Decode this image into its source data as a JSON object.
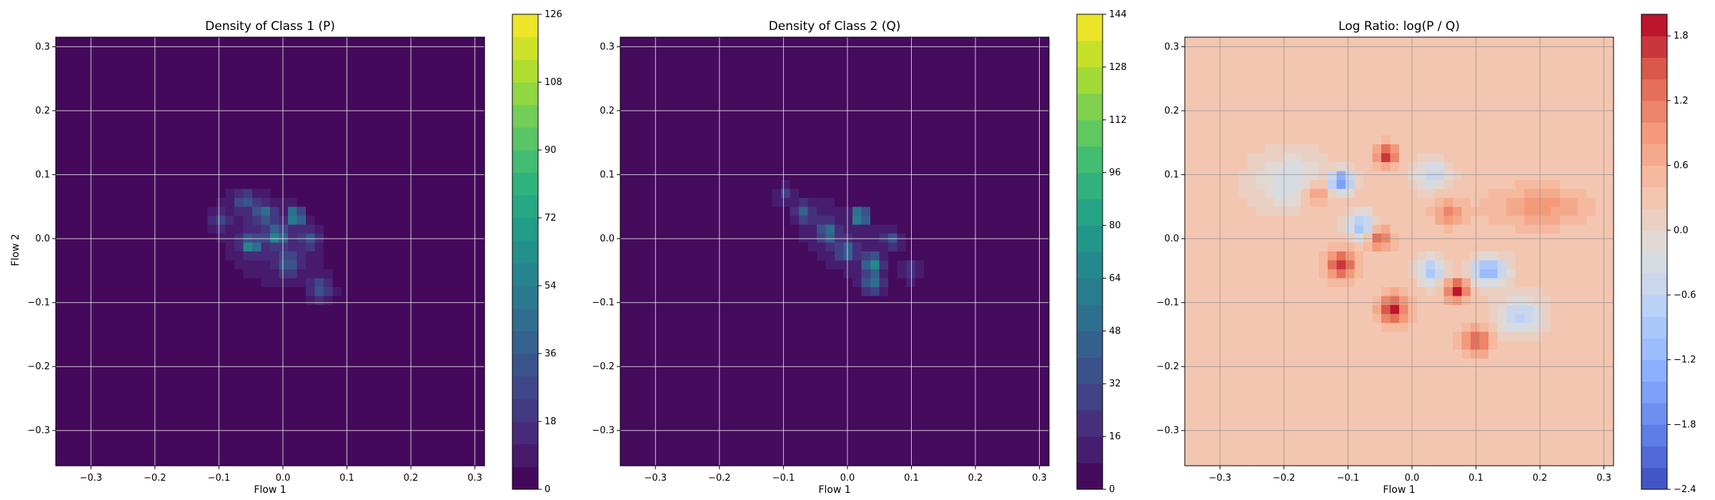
{
  "figure": {
    "background": "#ffffff"
  },
  "chart_data": [
    {
      "type": "heatmap",
      "title": "Density of Class 1 (P)",
      "xlabel": "Flow 1",
      "ylabel": "Flow 2",
      "xlim": [
        -0.355,
        0.315
      ],
      "ylim": [
        -0.355,
        0.315
      ],
      "xticks": [
        -0.3,
        -0.2,
        -0.1,
        0.0,
        0.1,
        0.2,
        0.3
      ],
      "yticks": [
        -0.3,
        -0.2,
        -0.1,
        0.0,
        0.1,
        0.2,
        0.3
      ],
      "xtick_labels": [
        "−0.3",
        "−0.2",
        "−0.1",
        "0.0",
        "0.1",
        "0.2",
        "0.3"
      ],
      "ytick_labels": [
        "−0.3",
        "−0.2",
        "−0.1",
        "0.0",
        "0.1",
        "0.2",
        "0.3"
      ],
      "grid": true,
      "colormap": "viridis",
      "colorbar": {
        "min": 0,
        "max": 126,
        "levels": 21,
        "ticks": [
          0,
          18,
          36,
          54,
          72,
          90,
          108,
          126
        ]
      },
      "blobs": [
        {
          "x": -0.02,
          "y": 0.0,
          "sx": 0.07,
          "sy": 0.05,
          "angle": -35,
          "amp": 14
        },
        {
          "x": 0.02,
          "y": 0.035,
          "sx": 0.008,
          "sy": 0.008,
          "angle": 0,
          "amp": 70
        },
        {
          "x": -0.05,
          "y": -0.01,
          "sx": 0.009,
          "sy": 0.009,
          "angle": 0,
          "amp": 55
        },
        {
          "x": -0.01,
          "y": 0.005,
          "sx": 0.01,
          "sy": 0.01,
          "angle": 0,
          "amp": 48
        },
        {
          "x": -0.03,
          "y": 0.04,
          "sx": 0.01,
          "sy": 0.01,
          "angle": 0,
          "amp": 38
        },
        {
          "x": 0.06,
          "y": -0.08,
          "sx": 0.012,
          "sy": 0.012,
          "angle": 0,
          "amp": 32
        },
        {
          "x": -0.06,
          "y": 0.06,
          "sx": 0.01,
          "sy": 0.01,
          "angle": 0,
          "amp": 30
        },
        {
          "x": 0.01,
          "y": -0.04,
          "sx": 0.012,
          "sy": 0.012,
          "angle": 0,
          "amp": 28
        },
        {
          "x": 0.04,
          "y": 0.0,
          "sx": 0.01,
          "sy": 0.01,
          "angle": 0,
          "amp": 25
        },
        {
          "x": -0.1,
          "y": 0.03,
          "sx": 0.012,
          "sy": 0.012,
          "angle": 0,
          "amp": 18
        }
      ]
    },
    {
      "type": "heatmap",
      "title": "Density of Class 2 (Q)",
      "xlabel": "Flow 1",
      "ylabel": "",
      "xlim": [
        -0.355,
        0.315
      ],
      "ylim": [
        -0.355,
        0.315
      ],
      "xticks": [
        -0.3,
        -0.2,
        -0.1,
        0.0,
        0.1,
        0.2,
        0.3
      ],
      "yticks": [
        -0.3,
        -0.2,
        -0.1,
        0.0,
        0.1,
        0.2,
        0.3
      ],
      "xtick_labels": [
        "−0.3",
        "−0.2",
        "−0.1",
        "0.0",
        "0.1",
        "0.2",
        "0.3"
      ],
      "ytick_labels": [
        "−0.3",
        "−0.2",
        "−0.1",
        "0.0",
        "0.1",
        "0.2",
        "0.3"
      ],
      "grid": true,
      "colormap": "viridis",
      "colorbar": {
        "min": 0,
        "max": 144,
        "levels": 18,
        "ticks": [
          0,
          16,
          32,
          48,
          64,
          80,
          96,
          112,
          128,
          144
        ]
      },
      "blobs": [
        {
          "x": -0.01,
          "y": 0.0,
          "sx": 0.075,
          "sy": 0.045,
          "angle": -40,
          "amp": 14
        },
        {
          "x": 0.02,
          "y": 0.035,
          "sx": 0.008,
          "sy": 0.008,
          "angle": 0,
          "amp": 80
        },
        {
          "x": 0.04,
          "y": -0.04,
          "sx": 0.01,
          "sy": 0.01,
          "angle": 0,
          "amp": 60
        },
        {
          "x": 0.04,
          "y": -0.07,
          "sx": 0.01,
          "sy": 0.01,
          "angle": 0,
          "amp": 50
        },
        {
          "x": -0.03,
          "y": 0.01,
          "sx": 0.01,
          "sy": 0.01,
          "angle": 0,
          "amp": 45
        },
        {
          "x": 0.0,
          "y": -0.02,
          "sx": 0.01,
          "sy": 0.01,
          "angle": 0,
          "amp": 40
        },
        {
          "x": -0.07,
          "y": 0.04,
          "sx": 0.01,
          "sy": 0.01,
          "angle": 0,
          "amp": 35
        },
        {
          "x": 0.07,
          "y": 0.0,
          "sx": 0.01,
          "sy": 0.01,
          "angle": 0,
          "amp": 30
        },
        {
          "x": -0.1,
          "y": 0.07,
          "sx": 0.01,
          "sy": 0.01,
          "angle": 0,
          "amp": 22
        },
        {
          "x": 0.1,
          "y": -0.05,
          "sx": 0.012,
          "sy": 0.012,
          "angle": 0,
          "amp": 18
        }
      ]
    },
    {
      "type": "heatmap",
      "title": "Log Ratio: log(P / Q)",
      "xlabel": "Flow 1",
      "ylabel": "",
      "xlim": [
        -0.355,
        0.315
      ],
      "ylim": [
        -0.355,
        0.315
      ],
      "xticks": [
        -0.3,
        -0.2,
        -0.1,
        0.0,
        0.1,
        0.2,
        0.3
      ],
      "yticks": [
        -0.3,
        -0.2,
        -0.1,
        0.0,
        0.1,
        0.2,
        0.3
      ],
      "xtick_labels": [
        "−0.3",
        "−0.2",
        "−0.1",
        "0.0",
        "0.1",
        "0.2",
        "0.3"
      ],
      "ytick_labels": [
        "−0.3",
        "−0.2",
        "−0.1",
        "0.0",
        "0.1",
        "0.2",
        "0.3"
      ],
      "grid": true,
      "colormap": "coolwarm",
      "colorbar": {
        "min": -2.4,
        "max": 2.0,
        "levels": 22,
        "ticks": [
          -2.4,
          -1.8,
          -1.2,
          -0.6,
          0.0,
          0.6,
          1.2,
          1.8
        ],
        "tick_labels": [
          "−2.4",
          "−1.8",
          "−1.2",
          "−0.6",
          "0.0",
          "0.6",
          "1.2",
          "1.8"
        ]
      },
      "background_value": 0.3,
      "blobs": [
        {
          "x": -0.11,
          "y": 0.09,
          "sx": 0.012,
          "sy": 0.012,
          "angle": 0,
          "amp": -2.0
        },
        {
          "x": -0.08,
          "y": 0.02,
          "sx": 0.015,
          "sy": 0.015,
          "angle": 0,
          "amp": -1.3
        },
        {
          "x": 0.12,
          "y": -0.05,
          "sx": 0.02,
          "sy": 0.015,
          "angle": 0,
          "amp": -1.5
        },
        {
          "x": 0.17,
          "y": -0.12,
          "sx": 0.025,
          "sy": 0.02,
          "angle": 0,
          "amp": -1.0
        },
        {
          "x": 0.03,
          "y": 0.1,
          "sx": 0.02,
          "sy": 0.015,
          "angle": 0,
          "amp": -0.9
        },
        {
          "x": 0.03,
          "y": -0.05,
          "sx": 0.015,
          "sy": 0.015,
          "angle": 0,
          "amp": -1.2
        },
        {
          "x": -0.19,
          "y": 0.09,
          "sx": 0.04,
          "sy": 0.03,
          "angle": 0,
          "amp": -0.7
        },
        {
          "x": -0.04,
          "y": 0.13,
          "sx": 0.012,
          "sy": 0.012,
          "angle": 0,
          "amp": 1.4
        },
        {
          "x": -0.11,
          "y": -0.04,
          "sx": 0.015,
          "sy": 0.015,
          "angle": 0,
          "amp": 1.5
        },
        {
          "x": -0.03,
          "y": -0.11,
          "sx": 0.015,
          "sy": 0.015,
          "angle": 0,
          "amp": 1.6
        },
        {
          "x": 0.07,
          "y": -0.08,
          "sx": 0.012,
          "sy": 0.012,
          "angle": 0,
          "amp": 1.7
        },
        {
          "x": 0.1,
          "y": -0.16,
          "sx": 0.015,
          "sy": 0.015,
          "angle": 0,
          "amp": 1.2
        },
        {
          "x": -0.05,
          "y": 0.0,
          "sx": 0.012,
          "sy": 0.012,
          "angle": 0,
          "amp": 1.2
        },
        {
          "x": 0.06,
          "y": 0.04,
          "sx": 0.015,
          "sy": 0.012,
          "angle": 0,
          "amp": 0.9
        },
        {
          "x": 0.2,
          "y": 0.05,
          "sx": 0.05,
          "sy": 0.02,
          "angle": 0,
          "amp": 0.6
        },
        {
          "x": -0.15,
          "y": 0.07,
          "sx": 0.015,
          "sy": 0.015,
          "angle": 0,
          "amp": 0.8
        }
      ]
    }
  ]
}
